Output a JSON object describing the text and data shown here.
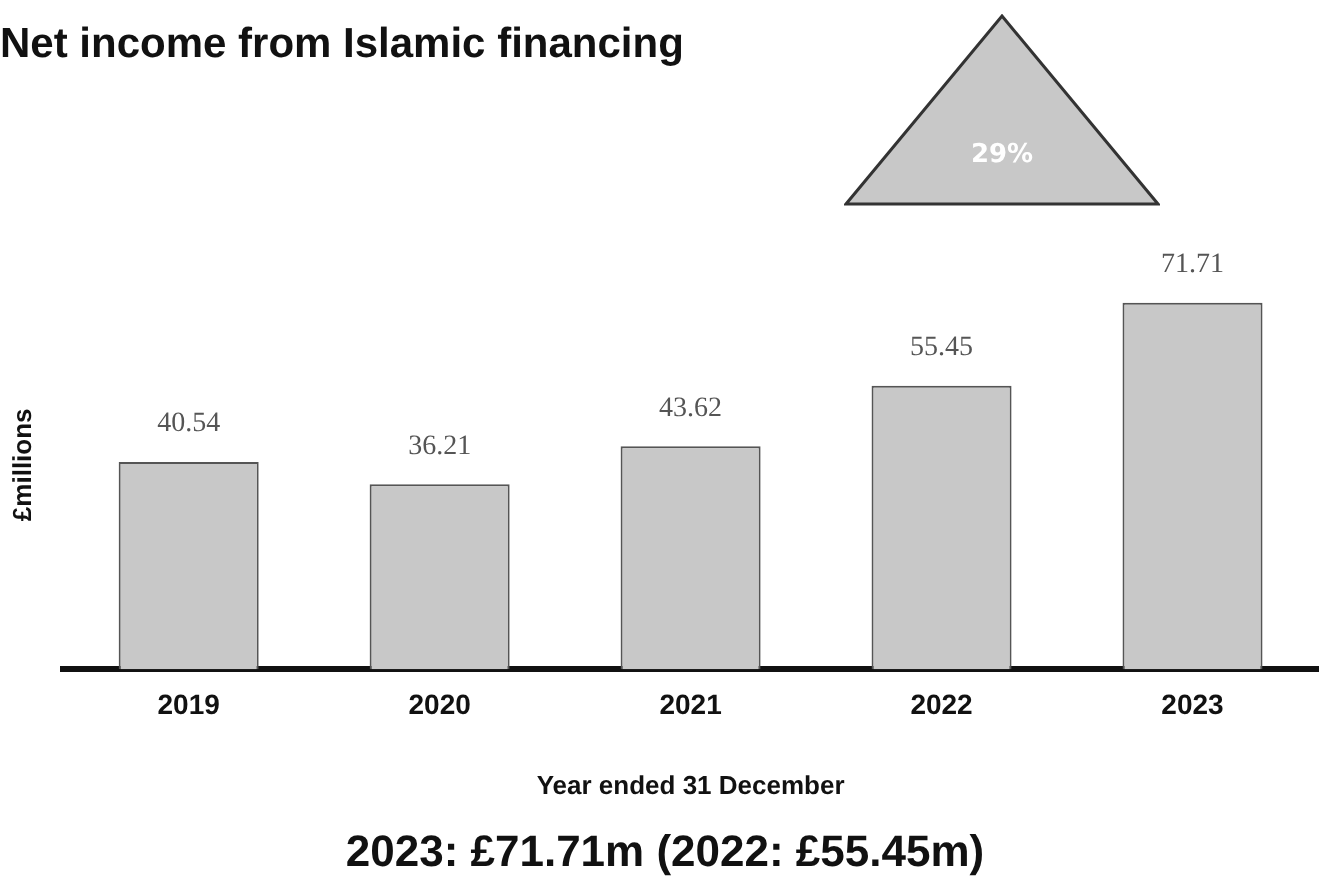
{
  "chart_data": {
    "type": "bar",
    "title": "Net income from Islamic financing",
    "ylabel": "£millions",
    "xlabel": "Year ended 31 December",
    "categories": [
      "2019",
      "2020",
      "2021",
      "2022",
      "2023"
    ],
    "values": [
      40.54,
      36.21,
      43.62,
      55.45,
      71.71
    ],
    "color": "#c8c8c8",
    "data_labels": true,
    "grid": false,
    "legend": false,
    "annotations": [
      "29%",
      "2023: £71.71m (2022: £55.45m)"
    ]
  }
}
